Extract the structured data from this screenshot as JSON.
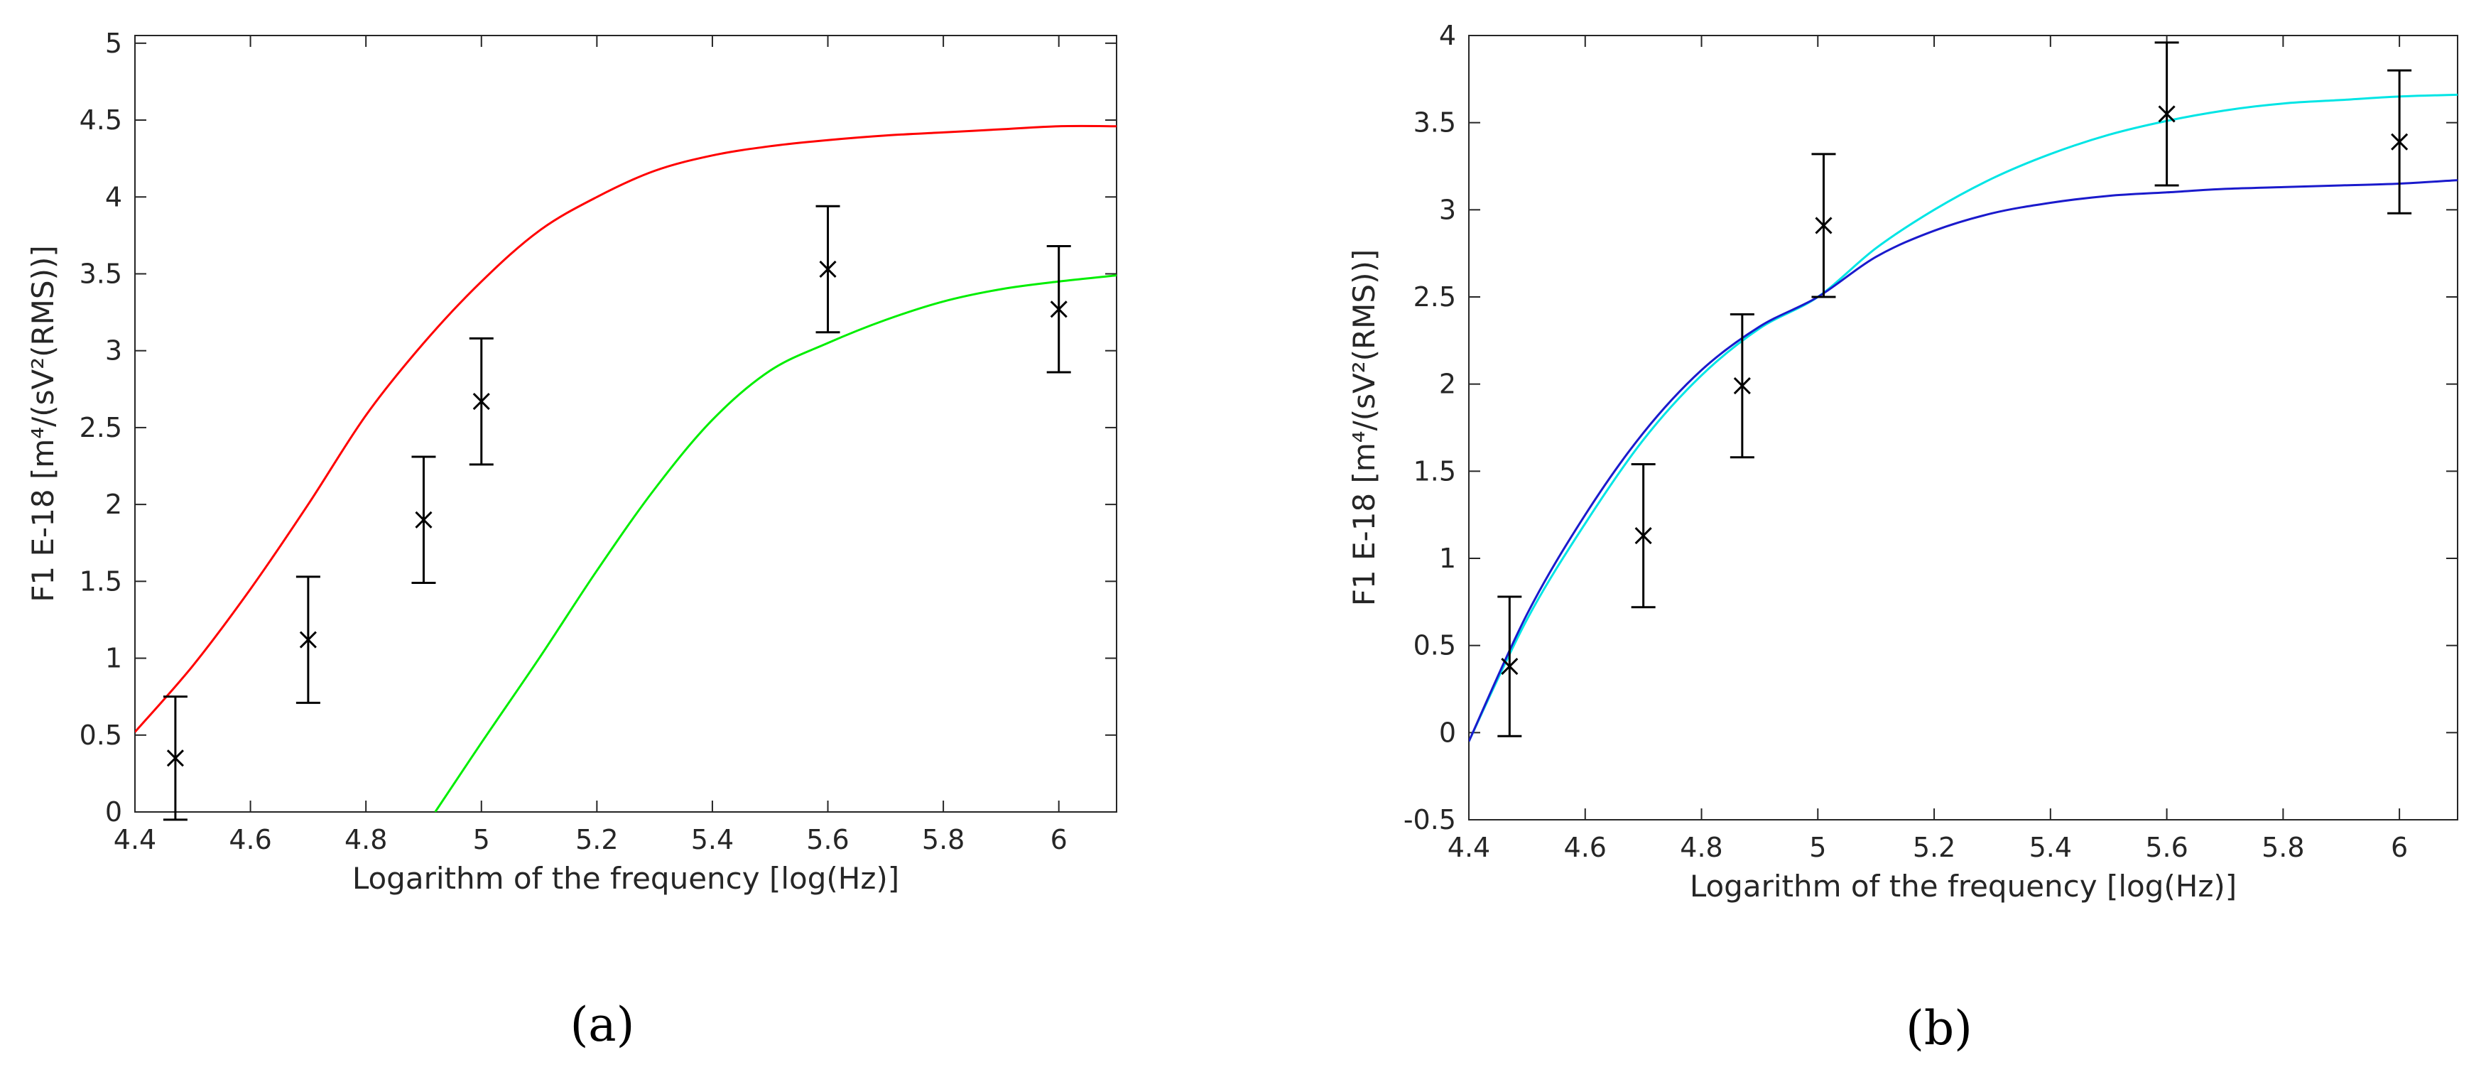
{
  "chart_data": [
    {
      "type": "line",
      "caption": "(a)",
      "xlabel": "Logarithm of the frequency [log(Hz)]",
      "ylabel": "F1 E-18 [m⁴/(sV²(RMS))]",
      "xlim": [
        4.4,
        6.1
      ],
      "ylim": [
        0,
        5.05
      ],
      "xticks": [
        4.4,
        4.6,
        4.8,
        5.0,
        5.2,
        5.4,
        5.6,
        5.8,
        6.0
      ],
      "xtick_labels": [
        "4.4",
        "4.6",
        "4.8",
        "5",
        "5.2",
        "5.4",
        "5.6",
        "5.8",
        "6"
      ],
      "yticks": [
        0,
        0.5,
        1,
        1.5,
        2,
        2.5,
        3,
        3.5,
        4,
        4.5,
        5
      ],
      "ytick_labels": [
        "0",
        "0.5",
        "1",
        "1.5",
        "2",
        "2.5",
        "3",
        "3.5",
        "4",
        "4.5",
        "5"
      ],
      "grid": false,
      "series": [
        {
          "name": "red curve",
          "color": "#ff0000",
          "x": [
            4.4,
            4.5,
            4.6,
            4.7,
            4.8,
            4.9,
            5.0,
            5.1,
            5.2,
            5.3,
            5.4,
            5.5,
            5.6,
            5.7,
            5.8,
            5.9,
            6.0,
            6.1
          ],
          "y": [
            0.52,
            0.95,
            1.45,
            2.0,
            2.58,
            3.05,
            3.45,
            3.78,
            4.0,
            4.17,
            4.27,
            4.33,
            4.37,
            4.4,
            4.42,
            4.44,
            4.46,
            4.46
          ]
        },
        {
          "name": "green curve",
          "color": "#00ee00",
          "x": [
            4.92,
            5.0,
            5.1,
            5.2,
            5.3,
            5.4,
            5.5,
            5.6,
            5.7,
            5.8,
            5.9,
            6.0,
            6.1
          ],
          "y": [
            0.0,
            0.45,
            1.0,
            1.57,
            2.1,
            2.55,
            2.87,
            3.05,
            3.2,
            3.32,
            3.4,
            3.45,
            3.49
          ]
        }
      ],
      "error_bars": {
        "color": "#000000",
        "marker": "x",
        "x": [
          4.47,
          4.7,
          4.9,
          5.0,
          5.6,
          6.0
        ],
        "y": [
          0.35,
          1.12,
          1.9,
          2.67,
          3.53,
          3.27
        ],
        "err": [
          0.4,
          0.41,
          0.41,
          0.41,
          0.41,
          0.41
        ]
      }
    },
    {
      "type": "line",
      "caption": "(b)",
      "xlabel": "Logarithm of the frequency [log(Hz)]",
      "ylabel": "F1 E-18 [m⁴/(sV²(RMS))]",
      "xlim": [
        4.4,
        6.1
      ],
      "ylim": [
        -0.5,
        4
      ],
      "xticks": [
        4.4,
        4.6,
        4.8,
        5.0,
        5.2,
        5.4,
        5.6,
        5.8,
        6.0
      ],
      "xtick_labels": [
        "4.4",
        "4.6",
        "4.8",
        "5",
        "5.2",
        "5.4",
        "5.6",
        "5.8",
        "6"
      ],
      "yticks": [
        -0.5,
        0,
        0.5,
        1,
        1.5,
        2,
        2.5,
        3,
        3.5,
        4
      ],
      "ytick_labels": [
        "-0.5",
        "0",
        "0.5",
        "1",
        "1.5",
        "2",
        "2.5",
        "3",
        "3.5",
        "4"
      ],
      "grid": false,
      "series": [
        {
          "name": "cyan curve",
          "color": "#00e5e5",
          "x": [
            4.4,
            4.5,
            4.6,
            4.7,
            4.8,
            4.9,
            5.0,
            5.1,
            5.2,
            5.3,
            5.4,
            5.5,
            5.6,
            5.7,
            5.8,
            5.9,
            6.0,
            6.1
          ],
          "y": [
            -0.05,
            0.65,
            1.2,
            1.68,
            2.05,
            2.32,
            2.5,
            2.78,
            3.0,
            3.18,
            3.32,
            3.43,
            3.51,
            3.57,
            3.61,
            3.63,
            3.65,
            3.66
          ]
        },
        {
          "name": "blue curve",
          "color": "#1a1acc",
          "x": [
            4.4,
            4.5,
            4.6,
            4.7,
            4.8,
            4.9,
            5.0,
            5.1,
            5.2,
            5.3,
            5.4,
            5.5,
            5.6,
            5.7,
            5.8,
            5.9,
            6.0,
            6.1
          ],
          "y": [
            -0.05,
            0.68,
            1.25,
            1.72,
            2.08,
            2.33,
            2.5,
            2.73,
            2.88,
            2.98,
            3.04,
            3.08,
            3.1,
            3.12,
            3.13,
            3.14,
            3.15,
            3.17
          ]
        }
      ],
      "error_bars": {
        "color": "#000000",
        "marker": "x",
        "x": [
          4.47,
          4.7,
          4.87,
          5.01,
          5.6,
          6.0
        ],
        "y": [
          0.38,
          1.13,
          1.99,
          2.91,
          3.55,
          3.39
        ],
        "err": [
          0.4,
          0.41,
          0.41,
          0.41,
          0.41,
          0.41
        ]
      }
    }
  ]
}
